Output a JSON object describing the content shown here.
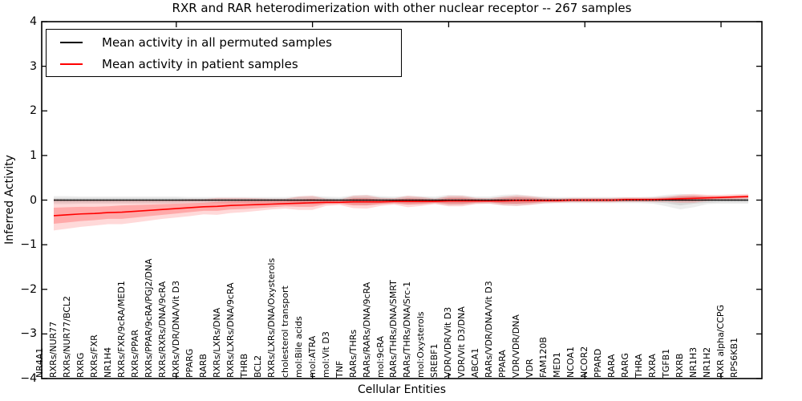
{
  "chart_data": {
    "type": "line",
    "title": "RXR and RAR heterodimerization with other nuclear receptor -- 267 samples",
    "xlabel": "Cellular Entities",
    "ylabel": "Inferred Activity",
    "ylim": [
      -4,
      4
    ],
    "grid": false,
    "legend_position": "upper-left",
    "y_ticks": [
      {
        "v": 4,
        "label": "4"
      },
      {
        "v": 3,
        "label": "3"
      },
      {
        "v": 2,
        "label": "2"
      },
      {
        "v": 1,
        "label": "1"
      },
      {
        "v": 0,
        "label": "0"
      },
      {
        "v": -1,
        "label": "−1"
      },
      {
        "v": -2,
        "label": "−2"
      },
      {
        "v": -3,
        "label": "−3"
      },
      {
        "v": -4,
        "label": "−4"
      }
    ],
    "x_major_tick_indices": [
      9,
      19,
      29,
      39,
      49
    ],
    "categories": [
      "NR4A1",
      "RXRs/NUR77",
      "RXRs/NUR77/BCL2",
      "RXRG",
      "RXRs/FXR",
      "NR1H4",
      "RXRs/FXR/9cRA/MED1",
      "RXRs/PPAR",
      "RXRs/PPAR/9cRA/PGJ2/DNA",
      "RXRs/RXRs/DNA/9cRA",
      "RXRs/VDR/DNA/Vit D3",
      "PPARG",
      "RARB",
      "RXRs/LXRs/DNA",
      "RXRs/LXRs/DNA/9cRA",
      "THRB",
      "BCL2",
      "RXRs/LXRs/DNA/Oxysterols",
      "cholesterol transport",
      "mol:Bile acids",
      "mol:ATRA",
      "mol:Vit D3",
      "TNF",
      "RARs/THRs",
      "RARs/RARs/DNA/9cRA",
      "mol:9cRA",
      "RARs/THRs/DNA/SMRT",
      "RARs/THRs/DNA/Src-1",
      "mol:Oxysterols",
      "SREBF1",
      "VDR/VDR/Vit D3",
      "VDR/Vit D3/DNA",
      "ABCA1",
      "RARs/VDR/DNA/Vit D3",
      "PPARA",
      "VDR/VDR/DNA",
      "VDR",
      "FAM120B",
      "MED1",
      "NCOA1",
      "NCOR2",
      "PPARD",
      "RARA",
      "RARG",
      "THRA",
      "RXRA",
      "TGFB1",
      "RXRB",
      "NR1H3",
      "NR1H2",
      "RXR alpha/CCPG",
      "RPS6KB1"
    ],
    "series": [
      {
        "name": "Mean activity in all permuted samples",
        "color": "#000000",
        "values": [
          0,
          0,
          0,
          0,
          0,
          0,
          0,
          0,
          0,
          0,
          0,
          0,
          0,
          0,
          0,
          0,
          0,
          0,
          0,
          0,
          0,
          0,
          0,
          0,
          0,
          0,
          0,
          0,
          0,
          0,
          0,
          0,
          0,
          0,
          0,
          0,
          0,
          0,
          0,
          0,
          0,
          0,
          0,
          0,
          0,
          0,
          0,
          0,
          0,
          0,
          0,
          0
        ]
      },
      {
        "name": "Mean activity in patient samples",
        "color": "#ff0000",
        "values": [
          -0.35,
          -0.33,
          -0.31,
          -0.3,
          -0.28,
          -0.27,
          -0.25,
          -0.23,
          -0.21,
          -0.19,
          -0.17,
          -0.15,
          -0.14,
          -0.12,
          -0.11,
          -0.1,
          -0.09,
          -0.08,
          -0.07,
          -0.06,
          -0.05,
          -0.05,
          -0.04,
          -0.04,
          -0.04,
          -0.03,
          -0.03,
          -0.03,
          -0.03,
          -0.02,
          -0.02,
          -0.02,
          -0.02,
          -0.02,
          -0.01,
          -0.01,
          -0.01,
          -0.01,
          0.0,
          0.0,
          0.0,
          0.0,
          0.01,
          0.01,
          0.01,
          0.02,
          0.03,
          0.04,
          0.05,
          0.06,
          0.07,
          0.08
        ]
      }
    ],
    "bands": [
      {
        "name": "permuted-outer-band",
        "color": "#000000",
        "opacity": 0.07,
        "high": [
          0.09,
          0.09,
          0.08,
          0.08,
          0.08,
          0.08,
          0.08,
          0.08,
          0.08,
          0.08,
          0.07,
          0.07,
          0.07,
          0.07,
          0.07,
          0.07,
          0.07,
          0.07,
          0.09,
          0.1,
          0.08,
          0.07,
          0.11,
          0.12,
          0.09,
          0.08,
          0.1,
          0.09,
          0.08,
          0.12,
          0.11,
          0.08,
          0.08,
          0.12,
          0.13,
          0.1,
          0.08,
          0.07,
          0.07,
          0.07,
          0.07,
          0.07,
          0.07,
          0.07,
          0.08,
          0.12,
          0.14,
          0.12,
          0.09,
          0.08,
          0.08,
          0.08
        ],
        "low": [
          -0.09,
          -0.09,
          -0.08,
          -0.08,
          -0.08,
          -0.08,
          -0.08,
          -0.08,
          -0.08,
          -0.08,
          -0.07,
          -0.07,
          -0.07,
          -0.07,
          -0.07,
          -0.07,
          -0.07,
          -0.07,
          -0.09,
          -0.1,
          -0.08,
          -0.07,
          -0.11,
          -0.12,
          -0.09,
          -0.08,
          -0.1,
          -0.09,
          -0.08,
          -0.12,
          -0.11,
          -0.08,
          -0.08,
          -0.12,
          -0.13,
          -0.1,
          -0.08,
          -0.07,
          -0.07,
          -0.07,
          -0.07,
          -0.07,
          -0.07,
          -0.07,
          -0.08,
          -0.14,
          -0.21,
          -0.16,
          -0.09,
          -0.08,
          -0.08,
          -0.08
        ]
      },
      {
        "name": "permuted-inner-band",
        "color": "#000000",
        "opacity": 0.09,
        "high": [
          0.05,
          0.05,
          0.05,
          0.05,
          0.05,
          0.05,
          0.05,
          0.05,
          0.05,
          0.05,
          0.04,
          0.04,
          0.04,
          0.04,
          0.04,
          0.04,
          0.04,
          0.04,
          0.06,
          0.06,
          0.05,
          0.04,
          0.07,
          0.07,
          0.06,
          0.05,
          0.06,
          0.06,
          0.05,
          0.07,
          0.07,
          0.05,
          0.05,
          0.07,
          0.08,
          0.06,
          0.05,
          0.04,
          0.04,
          0.04,
          0.04,
          0.04,
          0.04,
          0.04,
          0.05,
          0.07,
          0.09,
          0.08,
          0.06,
          0.05,
          0.05,
          0.05
        ],
        "low": [
          -0.05,
          -0.05,
          -0.05,
          -0.05,
          -0.05,
          -0.05,
          -0.05,
          -0.05,
          -0.05,
          -0.05,
          -0.04,
          -0.04,
          -0.04,
          -0.04,
          -0.04,
          -0.04,
          -0.04,
          -0.04,
          -0.06,
          -0.06,
          -0.05,
          -0.04,
          -0.07,
          -0.07,
          -0.06,
          -0.05,
          -0.06,
          -0.06,
          -0.05,
          -0.07,
          -0.07,
          -0.05,
          -0.05,
          -0.07,
          -0.08,
          -0.06,
          -0.05,
          -0.04,
          -0.04,
          -0.04,
          -0.04,
          -0.04,
          -0.04,
          -0.04,
          -0.05,
          -0.07,
          -0.12,
          -0.08,
          -0.06,
          -0.05,
          -0.05,
          -0.05
        ]
      },
      {
        "name": "patient-outer-band",
        "color": "#ff0000",
        "opacity": 0.15,
        "high": [
          0.02,
          0.01,
          0.0,
          -0.01,
          -0.01,
          0.0,
          0.0,
          0.0,
          0.0,
          0.01,
          0.02,
          0.02,
          0.05,
          0.05,
          0.05,
          0.04,
          0.03,
          0.03,
          0.08,
          0.1,
          0.03,
          0.01,
          0.1,
          0.11,
          0.05,
          0.04,
          0.1,
          0.07,
          0.03,
          0.1,
          0.1,
          0.05,
          0.04,
          0.08,
          0.11,
          0.09,
          0.05,
          0.04,
          0.05,
          0.05,
          0.05,
          0.05,
          0.06,
          0.06,
          0.06,
          0.08,
          0.12,
          0.14,
          0.12,
          0.12,
          0.13,
          0.14
        ],
        "low": [
          -0.68,
          -0.64,
          -0.6,
          -0.57,
          -0.54,
          -0.54,
          -0.5,
          -0.46,
          -0.42,
          -0.39,
          -0.36,
          -0.32,
          -0.33,
          -0.29,
          -0.27,
          -0.24,
          -0.21,
          -0.19,
          -0.22,
          -0.22,
          -0.13,
          -0.11,
          -0.18,
          -0.19,
          -0.13,
          -0.1,
          -0.16,
          -0.13,
          -0.09,
          -0.14,
          -0.14,
          -0.09,
          -0.08,
          -0.12,
          -0.13,
          -0.11,
          -0.07,
          -0.06,
          -0.05,
          -0.05,
          -0.05,
          -0.05,
          -0.04,
          -0.04,
          -0.04,
          -0.04,
          -0.06,
          -0.06,
          -0.02,
          0.0,
          0.01,
          0.02
        ]
      },
      {
        "name": "patient-inner-band",
        "color": "#ff0000",
        "opacity": 0.22,
        "high": [
          -0.17,
          -0.16,
          -0.15,
          -0.15,
          -0.14,
          -0.12,
          -0.11,
          -0.1,
          -0.09,
          -0.08,
          -0.07,
          -0.06,
          -0.04,
          -0.03,
          -0.02,
          -0.02,
          -0.02,
          -0.02,
          0.01,
          0.03,
          -0.01,
          -0.02,
          0.04,
          0.04,
          0.01,
          0.01,
          0.04,
          0.03,
          0.0,
          0.05,
          0.05,
          0.02,
          0.01,
          0.04,
          0.06,
          0.05,
          0.02,
          0.02,
          0.03,
          0.03,
          0.03,
          0.03,
          0.04,
          0.04,
          0.04,
          0.05,
          0.08,
          0.1,
          0.09,
          0.09,
          0.1,
          0.11
        ],
        "low": [
          -0.53,
          -0.5,
          -0.47,
          -0.45,
          -0.42,
          -0.42,
          -0.39,
          -0.36,
          -0.33,
          -0.3,
          -0.27,
          -0.24,
          -0.24,
          -0.21,
          -0.2,
          -0.18,
          -0.16,
          -0.14,
          -0.15,
          -0.15,
          -0.09,
          -0.08,
          -0.12,
          -0.12,
          -0.09,
          -0.07,
          -0.1,
          -0.09,
          -0.06,
          -0.09,
          -0.09,
          -0.06,
          -0.05,
          -0.08,
          -0.08,
          -0.07,
          -0.04,
          -0.04,
          -0.03,
          -0.03,
          -0.03,
          -0.03,
          -0.02,
          -0.02,
          -0.02,
          -0.01,
          -0.02,
          -0.02,
          0.01,
          0.03,
          0.04,
          0.05
        ]
      }
    ]
  }
}
